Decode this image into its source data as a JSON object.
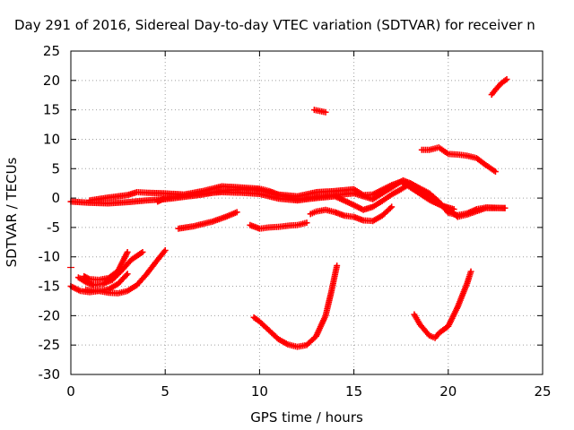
{
  "chart_data": {
    "type": "scatter",
    "title": "Day 291 of 2016, Sidereal Day-to-day VTEC variation (SDTVAR) for receiver n",
    "xlabel": "GPS time / hours",
    "ylabel": "SDTVAR / TECUs",
    "xlim": [
      0,
      25
    ],
    "ylim": [
      -30,
      25
    ],
    "xticks": [
      0,
      5,
      10,
      15,
      20,
      25
    ],
    "yticks": [
      -30,
      -25,
      -20,
      -15,
      -10,
      -5,
      0,
      5,
      10,
      15,
      20,
      25
    ],
    "grid": true,
    "marker": "plus",
    "color": "#ff0000",
    "series": [
      {
        "points": [
          [
            0,
            -0.6
          ],
          [
            1,
            -0.8
          ],
          [
            2,
            -0.9
          ],
          [
            3,
            -0.7
          ],
          [
            4,
            -0.4
          ],
          [
            5,
            -0.2
          ],
          [
            6,
            0.2
          ],
          [
            7,
            0.6
          ],
          [
            8,
            1.2
          ],
          [
            9,
            1.5
          ],
          [
            10,
            1.4
          ],
          [
            11,
            0.5
          ],
          [
            12,
            -0.2
          ],
          [
            13,
            0.2
          ],
          [
            14,
            0.5
          ],
          [
            15,
            0.8
          ],
          [
            16,
            -0.2
          ],
          [
            17,
            1.8
          ],
          [
            17.6,
            3.0
          ],
          [
            18,
            2.5
          ],
          [
            19,
            0.8
          ],
          [
            19.5,
            -0.6
          ],
          [
            20,
            -2.5
          ],
          [
            20.5,
            -2.9
          ],
          [
            21,
            -2.6
          ],
          [
            21.5,
            -1.9
          ],
          [
            22,
            -1.6
          ],
          [
            23,
            -1.7
          ]
        ]
      },
      {
        "points": [
          [
            1,
            -0.4
          ],
          [
            2,
            0.1
          ],
          [
            3,
            0.5
          ],
          [
            3.5,
            1.0
          ],
          [
            4,
            0.9
          ],
          [
            5,
            0.8
          ],
          [
            6,
            0.6
          ],
          [
            7,
            1.2
          ],
          [
            8,
            2.0
          ],
          [
            9,
            1.8
          ],
          [
            10,
            1.6
          ],
          [
            10.5,
            1.2
          ],
          [
            11,
            0.6
          ],
          [
            12,
            0.3
          ],
          [
            13,
            1.0
          ],
          [
            14,
            1.2
          ],
          [
            15,
            1.5
          ],
          [
            15.5,
            0.5
          ],
          [
            16,
            0.6
          ],
          [
            17,
            2.2
          ],
          [
            17.5,
            2.8
          ],
          [
            18,
            1.8
          ],
          [
            19,
            -0.3
          ],
          [
            20,
            -1.8
          ],
          [
            20.5,
            -3.2
          ],
          [
            21,
            -2.8
          ],
          [
            22,
            -1.7
          ],
          [
            23,
            -1.7
          ]
        ]
      },
      {
        "points": [
          [
            4.6,
            -0.6
          ],
          [
            5,
            0.0
          ],
          [
            6,
            0.4
          ],
          [
            7,
            0.8
          ],
          [
            8,
            1.0
          ],
          [
            9,
            0.9
          ],
          [
            10,
            0.7
          ],
          [
            11,
            -0.1
          ],
          [
            12,
            -0.4
          ],
          [
            13,
            0.0
          ],
          [
            14,
            0.3
          ],
          [
            15,
            -1.2
          ],
          [
            15.5,
            -2.0
          ],
          [
            16,
            -1.5
          ],
          [
            16.5,
            -0.5
          ],
          [
            17,
            0.6
          ],
          [
            17.5,
            1.5
          ],
          [
            18,
            2.5
          ],
          [
            18.5,
            1.5
          ],
          [
            19,
            -0.3
          ],
          [
            19.6,
            -1.2
          ],
          [
            20.3,
            -1.9
          ]
        ]
      },
      {
        "points": [
          [
            5.7,
            -5.2
          ],
          [
            6.5,
            -4.8
          ],
          [
            7.5,
            -4.0
          ],
          [
            8.2,
            -3.2
          ],
          [
            8.8,
            -2.4
          ]
        ]
      },
      {
        "points": [
          [
            9.5,
            -4.6
          ],
          [
            10,
            -5.2
          ],
          [
            10.5,
            -5.0
          ],
          [
            11,
            -4.9
          ],
          [
            11.5,
            -4.7
          ],
          [
            12,
            -4.6
          ],
          [
            12.5,
            -4.2
          ]
        ]
      },
      {
        "points": [
          [
            12.7,
            -2.7
          ],
          [
            13,
            -2.3
          ],
          [
            13.5,
            -2.0
          ],
          [
            14,
            -2.4
          ],
          [
            14.5,
            -3.0
          ],
          [
            15,
            -3.2
          ],
          [
            15.5,
            -3.8
          ],
          [
            16,
            -3.9
          ],
          [
            16.5,
            -3.0
          ],
          [
            17,
            -1.5
          ]
        ]
      },
      {
        "points": [
          [
            12.9,
            15.0
          ],
          [
            13.2,
            14.8
          ],
          [
            13.5,
            14.6
          ]
        ]
      },
      {
        "points": [
          [
            18.6,
            8.2
          ],
          [
            19,
            8.2
          ],
          [
            19.5,
            8.6
          ],
          [
            20,
            7.5
          ],
          [
            20.5,
            7.4
          ],
          [
            21,
            7.2
          ],
          [
            21.5,
            6.8
          ],
          [
            22,
            5.6
          ],
          [
            22.5,
            4.5
          ]
        ]
      },
      {
        "points": [
          [
            22.3,
            17.6
          ],
          [
            22.5,
            18.4
          ],
          [
            22.8,
            19.5
          ],
          [
            23.1,
            20.2
          ]
        ]
      },
      {
        "points": [
          [
            0,
            -15.0
          ],
          [
            0.5,
            -15.8
          ],
          [
            1,
            -16.0
          ],
          [
            1.5,
            -15.8
          ],
          [
            2,
            -15.5
          ],
          [
            2.5,
            -14.6
          ],
          [
            3,
            -12.9
          ]
        ]
      },
      {
        "points": [
          [
            0.4,
            -13.5
          ],
          [
            0.8,
            -14.3
          ],
          [
            1.2,
            -14.8
          ],
          [
            1.7,
            -14.6
          ],
          [
            2.2,
            -13.9
          ],
          [
            2.7,
            -12.3
          ],
          [
            3.2,
            -10.5
          ],
          [
            3.8,
            -9.2
          ]
        ]
      },
      {
        "points": [
          [
            0.7,
            -13.3
          ],
          [
            1,
            -13.8
          ],
          [
            1.5,
            -13.9
          ],
          [
            2,
            -13.6
          ],
          [
            2.5,
            -12.4
          ],
          [
            3,
            -9.2
          ]
        ]
      },
      {
        "points": [
          [
            0.8,
            -15.6
          ],
          [
            1.5,
            -15.8
          ],
          [
            2,
            -16.1
          ],
          [
            2.5,
            -16.2
          ],
          [
            3,
            -15.8
          ],
          [
            3.5,
            -14.8
          ],
          [
            4,
            -13.0
          ],
          [
            4.5,
            -10.9
          ],
          [
            5,
            -8.9
          ]
        ]
      },
      {
        "points": [
          [
            9.7,
            -20.3
          ],
          [
            10,
            -21.0
          ],
          [
            10.5,
            -22.5
          ],
          [
            11,
            -24.0
          ],
          [
            11.5,
            -24.9
          ],
          [
            12,
            -25.3
          ],
          [
            12.5,
            -25.0
          ],
          [
            13,
            -23.5
          ],
          [
            13.5,
            -20.0
          ],
          [
            13.8,
            -16.0
          ],
          [
            14.1,
            -11.5
          ]
        ]
      },
      {
        "points": [
          [
            18.2,
            -19.8
          ],
          [
            18.5,
            -21.5
          ],
          [
            19,
            -23.4
          ],
          [
            19.3,
            -23.8
          ],
          [
            19.5,
            -23.0
          ],
          [
            20,
            -21.8
          ],
          [
            20.5,
            -18.5
          ],
          [
            21,
            -14.5
          ],
          [
            21.2,
            -12.5
          ]
        ]
      }
    ]
  }
}
